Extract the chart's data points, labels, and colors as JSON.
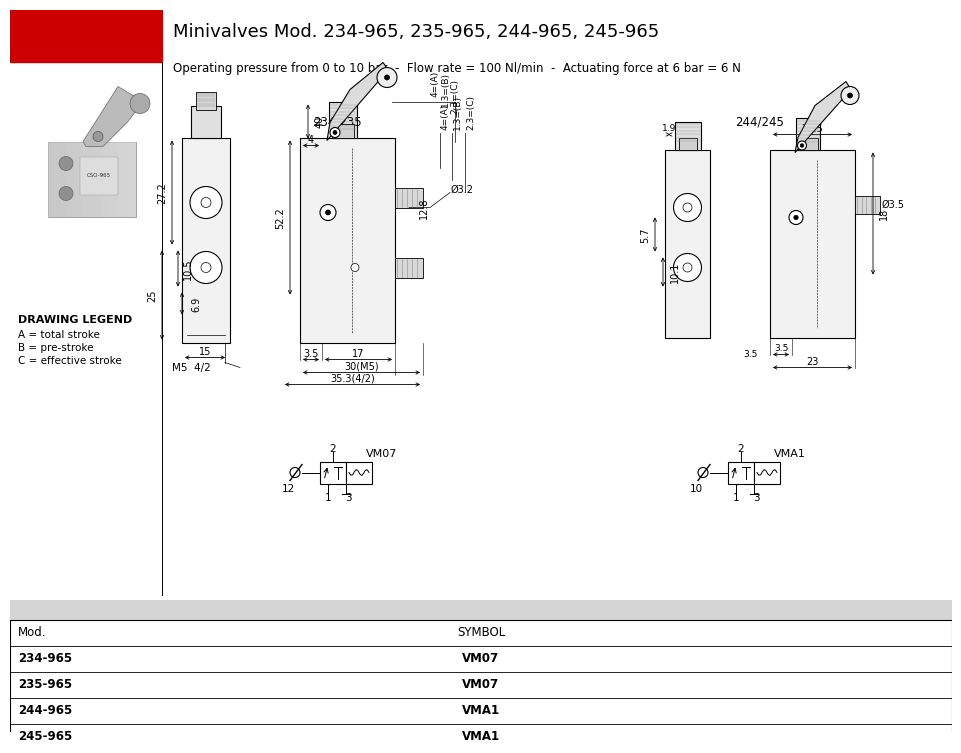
{
  "title": "Minivalves Mod. 234-965, 235-965, 244-965, 245-965",
  "subtitle": "Operating pressure from 0 to 10 bar  -  Flow rate = 100 Nl/min  -  Actuating force at 6 bar = 6 N",
  "header_color": "#CC0000",
  "bg_color": "#FFFFFF",
  "table_header_bg": "#DCDCDC",
  "table_data": [
    [
      "Mod.",
      "SYMBOL"
    ],
    [
      "234-965",
      "VM07"
    ],
    [
      "235-965",
      "VM07"
    ],
    [
      "244-965",
      "VMA1"
    ],
    [
      "245-965",
      "VMA1"
    ]
  ],
  "drawing_legend_title": "DRAWING LEGEND",
  "drawing_legend_lines": [
    "A = total stroke",
    "B = pre-stroke",
    "C = effective stroke"
  ],
  "label_left": "234/235",
  "label_right": "244/245",
  "vm07_label": "VM07",
  "vma1_label": "VMA1"
}
